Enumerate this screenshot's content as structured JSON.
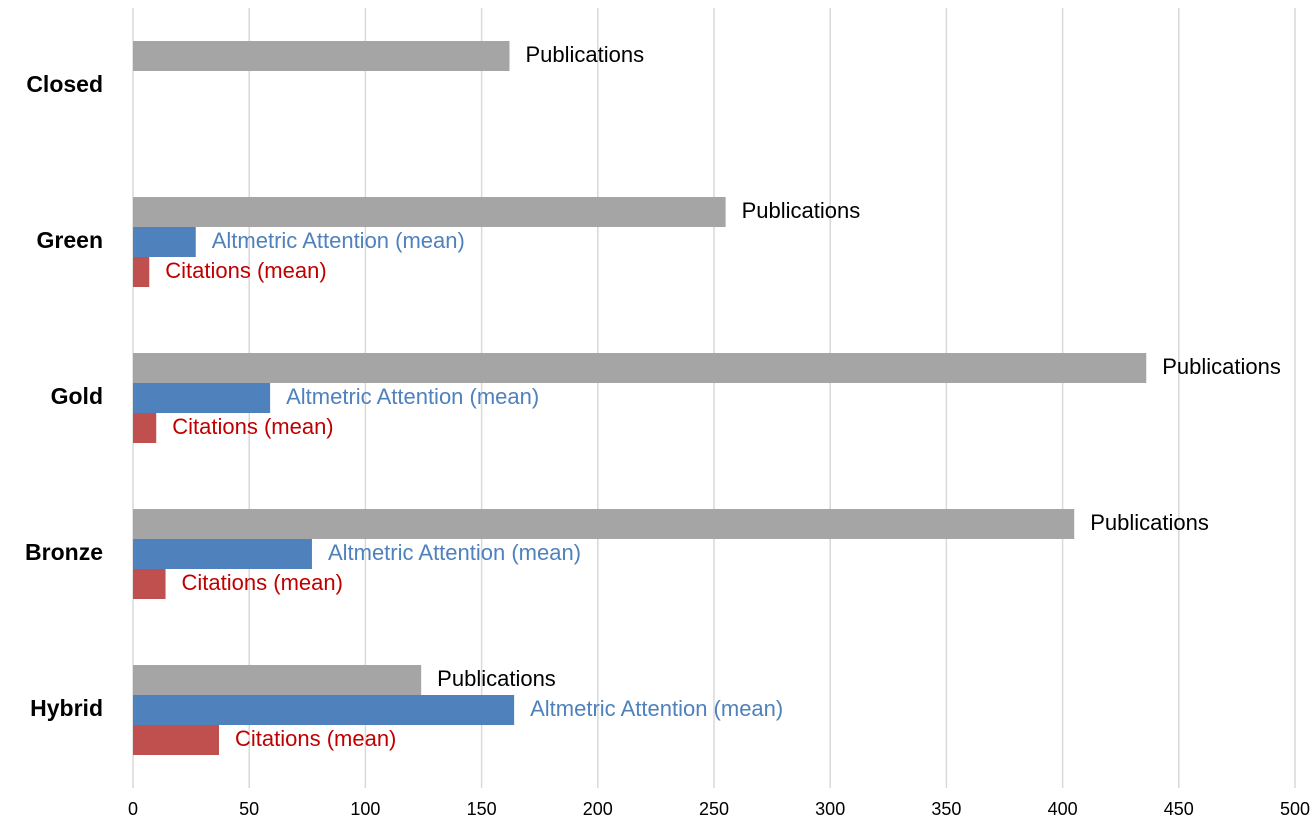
{
  "chart_data": {
    "type": "bar",
    "orientation": "horizontal",
    "categories": [
      "Closed",
      "Green",
      "Gold",
      "Bronze",
      "Hybrid"
    ],
    "series": [
      {
        "name": "Publications",
        "color": "#a5a5a5",
        "label_color": "#000000",
        "values": [
          162,
          255,
          436,
          405,
          124
        ]
      },
      {
        "name": "Altmetric Attention (mean)",
        "color": "#4f81bd",
        "label_color": "#4f81bd",
        "values": [
          null,
          27,
          59,
          77,
          164
        ]
      },
      {
        "name": "Citations (mean)",
        "color": "#c0504d",
        "label_color": "#c00000",
        "values": [
          null,
          7,
          10,
          14,
          37
        ]
      }
    ],
    "xlim": [
      0,
      500
    ],
    "xticks": [
      0,
      50,
      100,
      150,
      200,
      250,
      300,
      350,
      400,
      450,
      500
    ],
    "grid": true
  }
}
